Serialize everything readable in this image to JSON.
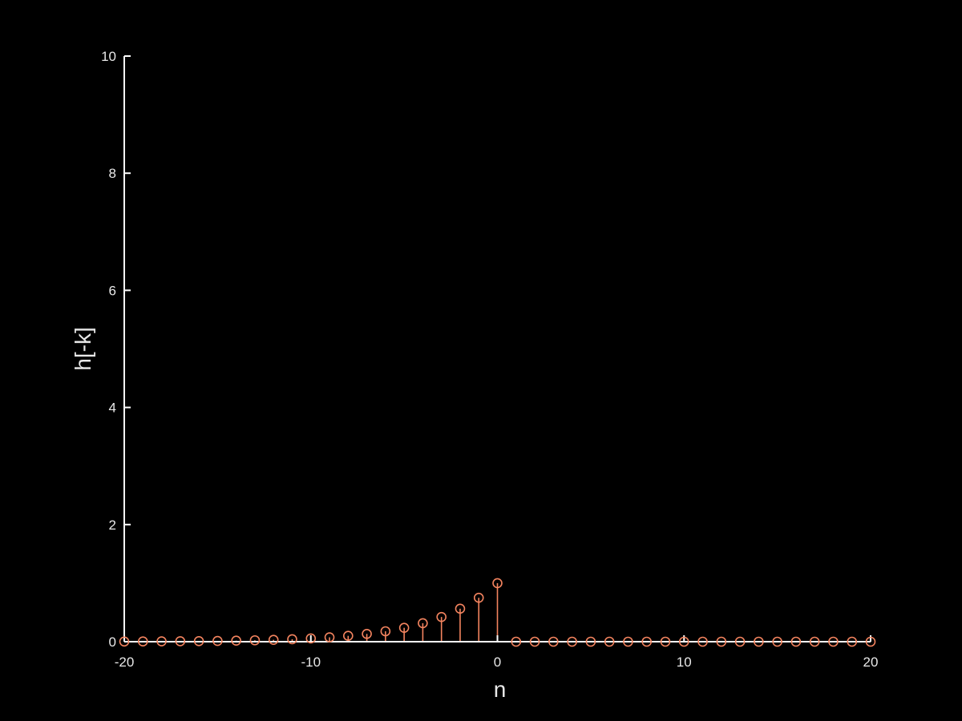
{
  "chart_data": {
    "type": "stem",
    "xlabel": "n",
    "ylabel": "h[-k]",
    "xlim": [
      -20,
      20
    ],
    "ylim": [
      0,
      10
    ],
    "x_ticks": [
      -20,
      -10,
      0,
      10,
      20
    ],
    "y_ticks": [
      0,
      2,
      4,
      6,
      8,
      10
    ],
    "x_tick_labels": [
      "-20",
      "-10",
      "0",
      "10",
      "20"
    ],
    "y_tick_labels": [
      "0",
      "2",
      "4",
      "6",
      "8",
      "10"
    ],
    "grid": false,
    "background_color": "#000000",
    "axis_color": "#ffffff",
    "text_color": "#e8e8e8",
    "series": [
      {
        "color": "#f4845f",
        "marker": "circle",
        "x": [
          -20,
          -19,
          -18,
          -17,
          -16,
          -15,
          -14,
          -13,
          -12,
          -11,
          -10,
          -9,
          -8,
          -7,
          -6,
          -5,
          -4,
          -3,
          -2,
          -1,
          0,
          1,
          2,
          3,
          4,
          5,
          6,
          7,
          8,
          9,
          10,
          11,
          12,
          13,
          14,
          15,
          16,
          17,
          18,
          19,
          20
        ],
        "y": [
          0.003,
          0.004,
          0.006,
          0.008,
          0.01,
          0.013,
          0.018,
          0.024,
          0.032,
          0.042,
          0.056,
          0.075,
          0.1,
          0.133,
          0.178,
          0.237,
          0.316,
          0.422,
          0.563,
          0.75,
          1.0,
          0,
          0,
          0,
          0,
          0,
          0,
          0,
          0,
          0,
          0,
          0,
          0,
          0,
          0,
          0,
          0,
          0,
          0,
          0,
          0
        ]
      }
    ]
  }
}
